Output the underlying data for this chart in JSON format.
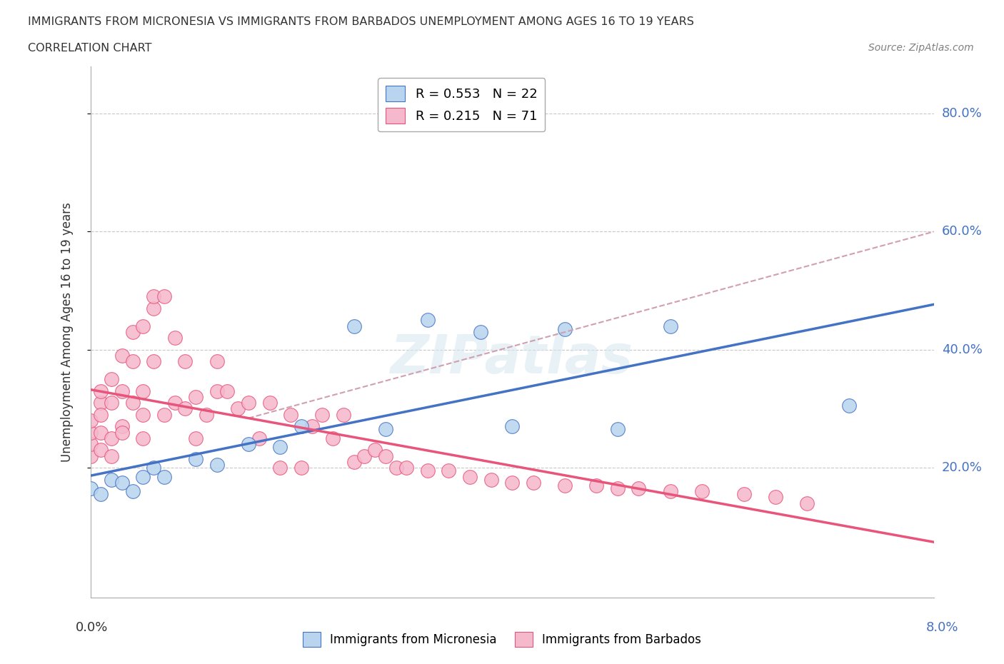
{
  "title": "IMMIGRANTS FROM MICRONESIA VS IMMIGRANTS FROM BARBADOS UNEMPLOYMENT AMONG AGES 16 TO 19 YEARS",
  "subtitle": "CORRELATION CHART",
  "source": "Source: ZipAtlas.com",
  "xlabel_bottom_left": "0.0%",
  "xlabel_bottom_right": "8.0%",
  "ylabel": "Unemployment Among Ages 16 to 19 years",
  "legend_entry1": "R = 0.553   N = 22",
  "legend_entry2": "R = 0.215   N = 71",
  "watermark": "ZIPatlas",
  "ytick_labels": [
    "20.0%",
    "40.0%",
    "60.0%",
    "80.0%"
  ],
  "ytick_values": [
    0.2,
    0.4,
    0.6,
    0.8
  ],
  "xmin": 0.0,
  "xmax": 0.08,
  "ymin": -0.02,
  "ymax": 0.88,
  "micronesia_fill_color": "#b8d4ee",
  "micronesia_edge_color": "#4472C4",
  "barbados_fill_color": "#f5b8cc",
  "barbados_edge_color": "#E8547A",
  "mic_trend_color": "#4472C4",
  "bar_trend_solid_color": "#E8547A",
  "bar_trend_dash_color": "#d0a0b0",
  "background_color": "#ffffff",
  "grid_color": "#c8c8c8",
  "mic_x": [
    0.0,
    0.001,
    0.002,
    0.003,
    0.004,
    0.005,
    0.006,
    0.007,
    0.01,
    0.012,
    0.015,
    0.018,
    0.02,
    0.025,
    0.028,
    0.032,
    0.037,
    0.04,
    0.045,
    0.05,
    0.055,
    0.072
  ],
  "mic_y": [
    0.165,
    0.155,
    0.18,
    0.175,
    0.16,
    0.185,
    0.2,
    0.185,
    0.215,
    0.205,
    0.24,
    0.235,
    0.27,
    0.44,
    0.265,
    0.45,
    0.43,
    0.27,
    0.435,
    0.265,
    0.44,
    0.305
  ],
  "bar_x": [
    0.0,
    0.0,
    0.0,
    0.0,
    0.001,
    0.001,
    0.001,
    0.001,
    0.001,
    0.002,
    0.002,
    0.002,
    0.002,
    0.003,
    0.003,
    0.003,
    0.003,
    0.004,
    0.004,
    0.004,
    0.005,
    0.005,
    0.005,
    0.005,
    0.006,
    0.006,
    0.006,
    0.007,
    0.007,
    0.008,
    0.008,
    0.009,
    0.009,
    0.01,
    0.01,
    0.011,
    0.012,
    0.012,
    0.013,
    0.014,
    0.015,
    0.016,
    0.017,
    0.018,
    0.019,
    0.02,
    0.021,
    0.022,
    0.023,
    0.024,
    0.025,
    0.026,
    0.027,
    0.028,
    0.029,
    0.03,
    0.032,
    0.034,
    0.036,
    0.038,
    0.04,
    0.042,
    0.045,
    0.048,
    0.05,
    0.052,
    0.055,
    0.058,
    0.062,
    0.065,
    0.068
  ],
  "bar_y": [
    0.22,
    0.24,
    0.26,
    0.28,
    0.23,
    0.26,
    0.31,
    0.33,
    0.29,
    0.25,
    0.31,
    0.35,
    0.22,
    0.27,
    0.33,
    0.39,
    0.26,
    0.31,
    0.38,
    0.43,
    0.33,
    0.44,
    0.29,
    0.25,
    0.38,
    0.47,
    0.49,
    0.29,
    0.49,
    0.31,
    0.42,
    0.3,
    0.38,
    0.25,
    0.32,
    0.29,
    0.33,
    0.38,
    0.33,
    0.3,
    0.31,
    0.25,
    0.31,
    0.2,
    0.29,
    0.2,
    0.27,
    0.29,
    0.25,
    0.29,
    0.21,
    0.22,
    0.23,
    0.22,
    0.2,
    0.2,
    0.195,
    0.195,
    0.185,
    0.18,
    0.175,
    0.175,
    0.17,
    0.17,
    0.165,
    0.165,
    0.16,
    0.16,
    0.155,
    0.15,
    0.14
  ]
}
